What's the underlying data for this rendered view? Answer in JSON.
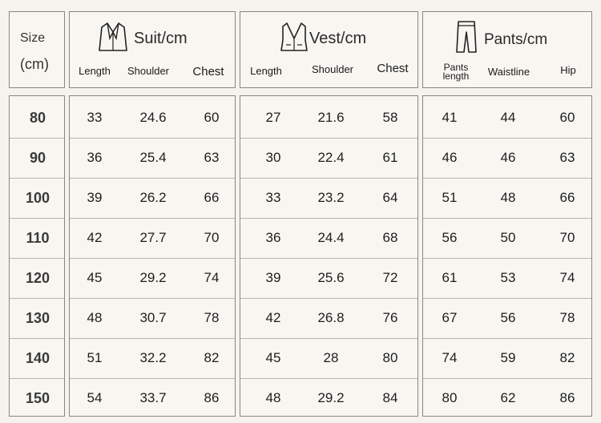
{
  "size_header": {
    "line1": "Size",
    "line2": "(cm)"
  },
  "groups": [
    {
      "title": "Suit/cm",
      "icon": "suit-icon",
      "columns": [
        "Length",
        "Shoulder",
        "Chest"
      ]
    },
    {
      "title": "Vest/cm",
      "icon": "vest-icon",
      "columns": [
        "Length",
        "Shoulder",
        "Chest"
      ]
    },
    {
      "title": "Pants/cm",
      "icon": "pants-icon",
      "columns": [
        "Pants length",
        "Waistline",
        "Hip"
      ]
    }
  ],
  "rows": [
    {
      "size": "80",
      "values": [
        "33",
        "24.6",
        "60",
        "27",
        "21.6",
        "58",
        "41",
        "44",
        "60"
      ]
    },
    {
      "size": "90",
      "values": [
        "36",
        "25.4",
        "63",
        "30",
        "22.4",
        "61",
        "46",
        "46",
        "63"
      ]
    },
    {
      "size": "100",
      "values": [
        "39",
        "26.2",
        "66",
        "33",
        "23.2",
        "64",
        "51",
        "48",
        "66"
      ]
    },
    {
      "size": "110",
      "values": [
        "42",
        "27.7",
        "70",
        "36",
        "24.4",
        "68",
        "56",
        "50",
        "70"
      ]
    },
    {
      "size": "120",
      "values": [
        "45",
        "29.2",
        "74",
        "39",
        "25.6",
        "72",
        "61",
        "53",
        "74"
      ]
    },
    {
      "size": "130",
      "values": [
        "48",
        "30.7",
        "78",
        "42",
        "26.8",
        "76",
        "67",
        "56",
        "78"
      ]
    },
    {
      "size": "140",
      "values": [
        "51",
        "32.2",
        "82",
        "45",
        "28",
        "80",
        "74",
        "59",
        "82"
      ]
    },
    {
      "size": "150",
      "values": [
        "54",
        "33.7",
        "86",
        "48",
        "29.2",
        "84",
        "80",
        "62",
        "86"
      ]
    }
  ]
}
